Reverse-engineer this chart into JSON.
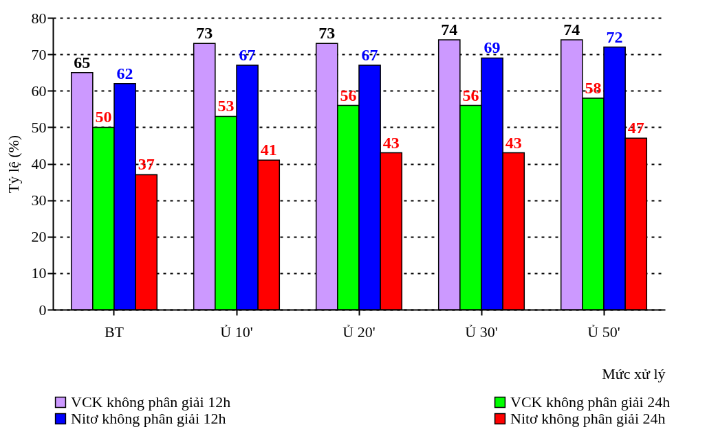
{
  "chart_data": {
    "type": "bar",
    "xlabel": "Mức xử lý",
    "ylabel": "Tỷ lệ (%)",
    "categories": [
      "BT",
      "Ủ 10'",
      "Ủ 20'",
      "Ủ 30'",
      "Ủ 50'"
    ],
    "series": [
      {
        "name": "VCK không phân giải 12h",
        "color": "#cc99ff",
        "values": [
          65,
          73,
          73,
          74,
          74
        ]
      },
      {
        "name": "VCK không phân giải 24h",
        "color": "#00ff00",
        "values": [
          50,
          53,
          56,
          56,
          58
        ]
      },
      {
        "name": "Nitơ không phân giải 12h",
        "color": "#0000ff",
        "values": [
          62,
          67,
          67,
          69,
          72
        ]
      },
      {
        "name": "Nitơ không phân giải 24h",
        "color": "#ff0000",
        "values": [
          37,
          41,
          43,
          43,
          47
        ]
      }
    ],
    "ylim": [
      0,
      80
    ],
    "yticks": [
      0,
      10,
      20,
      30,
      40,
      50,
      60,
      70,
      80
    ],
    "grid": "y",
    "legend": "bottom",
    "data_labels": true
  }
}
